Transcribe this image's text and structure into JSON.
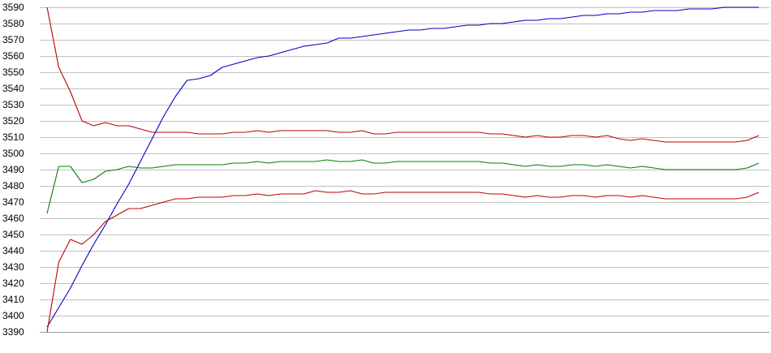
{
  "chart_data": {
    "type": "line",
    "title": "",
    "xlabel": "",
    "ylabel": "",
    "ylim": [
      3390,
      3590
    ],
    "yticks": [
      3390,
      3400,
      3410,
      3420,
      3430,
      3440,
      3450,
      3460,
      3470,
      3480,
      3490,
      3500,
      3510,
      3520,
      3530,
      3540,
      3550,
      3560,
      3570,
      3580,
      3590
    ],
    "grid": true,
    "legend": "none",
    "x": [
      0,
      1,
      2,
      3,
      4,
      5,
      6,
      7,
      8,
      9,
      10,
      11,
      12,
      13,
      14,
      15,
      16,
      17,
      18,
      19,
      20,
      21,
      22,
      23,
      24,
      25,
      26,
      27,
      28,
      29,
      30,
      31,
      32,
      33,
      34,
      35,
      36,
      37,
      38,
      39,
      40,
      41,
      42,
      43,
      44,
      45,
      46,
      47,
      48,
      49,
      50,
      51,
      52,
      53,
      54,
      55,
      56,
      57,
      58,
      59,
      60,
      61
    ],
    "series": [
      {
        "color": "#0000c0",
        "values": [
          3393,
          3405,
          3417,
          3431,
          3444,
          3456,
          3469,
          3481,
          3495,
          3509,
          3523,
          3535,
          3545,
          3546,
          3548,
          3553,
          3555,
          3557,
          3559,
          3560,
          3562,
          3564,
          3566,
          3567,
          3568,
          3571,
          3571,
          3572,
          3573,
          3574,
          3575,
          3576,
          3576,
          3577,
          3577,
          3578,
          3579,
          3579,
          3580,
          3580,
          3581,
          3582,
          3582,
          3583,
          3583,
          3584,
          3585,
          3585,
          3586,
          3586,
          3587,
          3587,
          3588,
          3588,
          3588,
          3589,
          3589,
          3589,
          3590,
          3590,
          3590,
          3590
        ]
      },
      {
        "color": "#c00000",
        "values": [
          3590,
          3553,
          3538,
          3520,
          3517,
          3519,
          3517,
          3517,
          3515,
          3513,
          3513,
          3513,
          3513,
          3512,
          3512,
          3512,
          3513,
          3513,
          3514,
          3513,
          3514,
          3514,
          3514,
          3514,
          3514,
          3513,
          3513,
          3514,
          3512,
          3512,
          3513,
          3513,
          3513,
          3513,
          3513,
          3513,
          3513,
          3513,
          3512,
          3512,
          3511,
          3510,
          3511,
          3510,
          3510,
          3511,
          3511,
          3510,
          3511,
          3509,
          3508,
          3509,
          3508,
          3507,
          3507,
          3507,
          3507,
          3507,
          3507,
          3507,
          3508,
          3511
        ]
      },
      {
        "color": "#008000",
        "values": [
          3463,
          3492,
          3492,
          3482,
          3484,
          3489,
          3490,
          3492,
          3491,
          3491,
          3492,
          3493,
          3493,
          3493,
          3493,
          3493,
          3494,
          3494,
          3495,
          3494,
          3495,
          3495,
          3495,
          3495,
          3496,
          3495,
          3495,
          3496,
          3494,
          3494,
          3495,
          3495,
          3495,
          3495,
          3495,
          3495,
          3495,
          3495,
          3494,
          3494,
          3493,
          3492,
          3493,
          3492,
          3492,
          3493,
          3493,
          3492,
          3493,
          3492,
          3491,
          3492,
          3491,
          3490,
          3490,
          3490,
          3490,
          3490,
          3490,
          3490,
          3491,
          3494
        ]
      },
      {
        "color": "#c00000",
        "values": [
          3390,
          3433,
          3447,
          3444,
          3450,
          3458,
          3462,
          3466,
          3466,
          3468,
          3470,
          3472,
          3472,
          3473,
          3473,
          3473,
          3474,
          3474,
          3475,
          3474,
          3475,
          3475,
          3475,
          3477,
          3476,
          3476,
          3477,
          3475,
          3475,
          3476,
          3476,
          3476,
          3476,
          3476,
          3476,
          3476,
          3476,
          3476,
          3475,
          3475,
          3474,
          3473,
          3474,
          3473,
          3473,
          3474,
          3474,
          3473,
          3474,
          3474,
          3473,
          3474,
          3473,
          3472,
          3472,
          3472,
          3472,
          3472,
          3472,
          3472,
          3473,
          3476
        ]
      }
    ]
  }
}
